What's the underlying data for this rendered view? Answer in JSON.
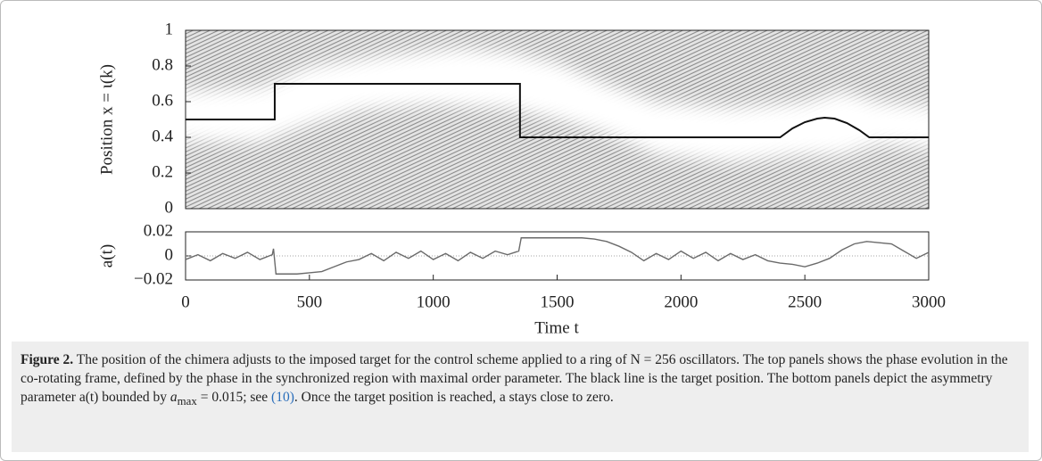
{
  "chart_data": [
    {
      "type": "line",
      "y_label": "Position x = ι(k)",
      "x": [
        0,
        360,
        360,
        1350,
        1350,
        2400,
        2450,
        2500,
        2550,
        2580,
        2620,
        2670,
        2720,
        2760,
        3000
      ],
      "series": [
        {
          "color": "#111111",
          "values": [
            0.5,
            0.5,
            0.7,
            0.7,
            0.4,
            0.4,
            0.45,
            0.485,
            0.505,
            0.51,
            0.505,
            0.48,
            0.44,
            0.4,
            0.4
          ]
        }
      ],
      "xlim": [
        0,
        3000
      ],
      "ylim": [
        0,
        1
      ],
      "yticks": [
        0,
        0.2,
        0.4,
        0.6,
        0.8,
        1
      ]
    },
    {
      "type": "line",
      "y_label": "a(t)",
      "x_label": "Time t",
      "x": [
        0,
        50,
        100,
        150,
        200,
        250,
        300,
        350,
        355,
        365,
        400,
        450,
        500,
        550,
        600,
        650,
        700,
        750,
        800,
        850,
        900,
        950,
        1000,
        1050,
        1100,
        1150,
        1200,
        1250,
        1300,
        1345,
        1355,
        1400,
        1450,
        1500,
        1550,
        1600,
        1650,
        1700,
        1750,
        1800,
        1850,
        1900,
        1950,
        2000,
        2050,
        2100,
        2150,
        2200,
        2250,
        2300,
        2350,
        2400,
        2450,
        2500,
        2550,
        2600,
        2650,
        2700,
        2750,
        2800,
        2850,
        2900,
        2950,
        3000
      ],
      "series": [
        {
          "color": "#6a6a6a",
          "values": [
            -0.003,
            0.001,
            -0.004,
            0.002,
            -0.002,
            0.003,
            -0.003,
            0.001,
            0.006,
            -0.015,
            -0.015,
            -0.015,
            -0.014,
            -0.013,
            -0.009,
            -0.005,
            -0.003,
            0.002,
            -0.004,
            0.003,
            -0.002,
            0.004,
            -0.003,
            0.002,
            -0.004,
            0.003,
            -0.002,
            0.004,
            0.001,
            0.004,
            0.015,
            0.015,
            0.015,
            0.015,
            0.015,
            0.015,
            0.014,
            0.012,
            0.008,
            0.003,
            -0.004,
            0.002,
            -0.003,
            0.004,
            -0.002,
            0.003,
            -0.004,
            0.002,
            -0.003,
            0.001,
            -0.004,
            -0.006,
            -0.007,
            -0.009,
            -0.006,
            -0.002,
            0.005,
            0.01,
            0.012,
            0.011,
            0.01,
            0.004,
            -0.002,
            0.003
          ]
        }
      ],
      "reference_line": 0,
      "xlim": [
        0,
        3000
      ],
      "ylim": [
        -0.02,
        0.02
      ],
      "xticks": [
        0,
        500,
        1000,
        1500,
        2000,
        2500,
        3000
      ],
      "yticks": [
        {
          "value": -0.02,
          "label": "−0.02"
        },
        0,
        0.02
      ]
    }
  ],
  "caption": {
    "label": "Figure 2.",
    "text1": "The position of the chimera adjusts to the imposed target for the control scheme applied to a ring of N = 256 oscillators. The top panels shows the phase evolution in the co-rotating frame, defined by the phase in the synchronized region with maximal order parameter. The black line is the target position. The bottom panels depict the asymmetry parameter a(t) bounded by ",
    "math": "a",
    "sub": "max",
    "text2": " = 0.015; see ",
    "ref": "(10)",
    "text3": ". Once the target position is reached, a stays close to zero."
  }
}
